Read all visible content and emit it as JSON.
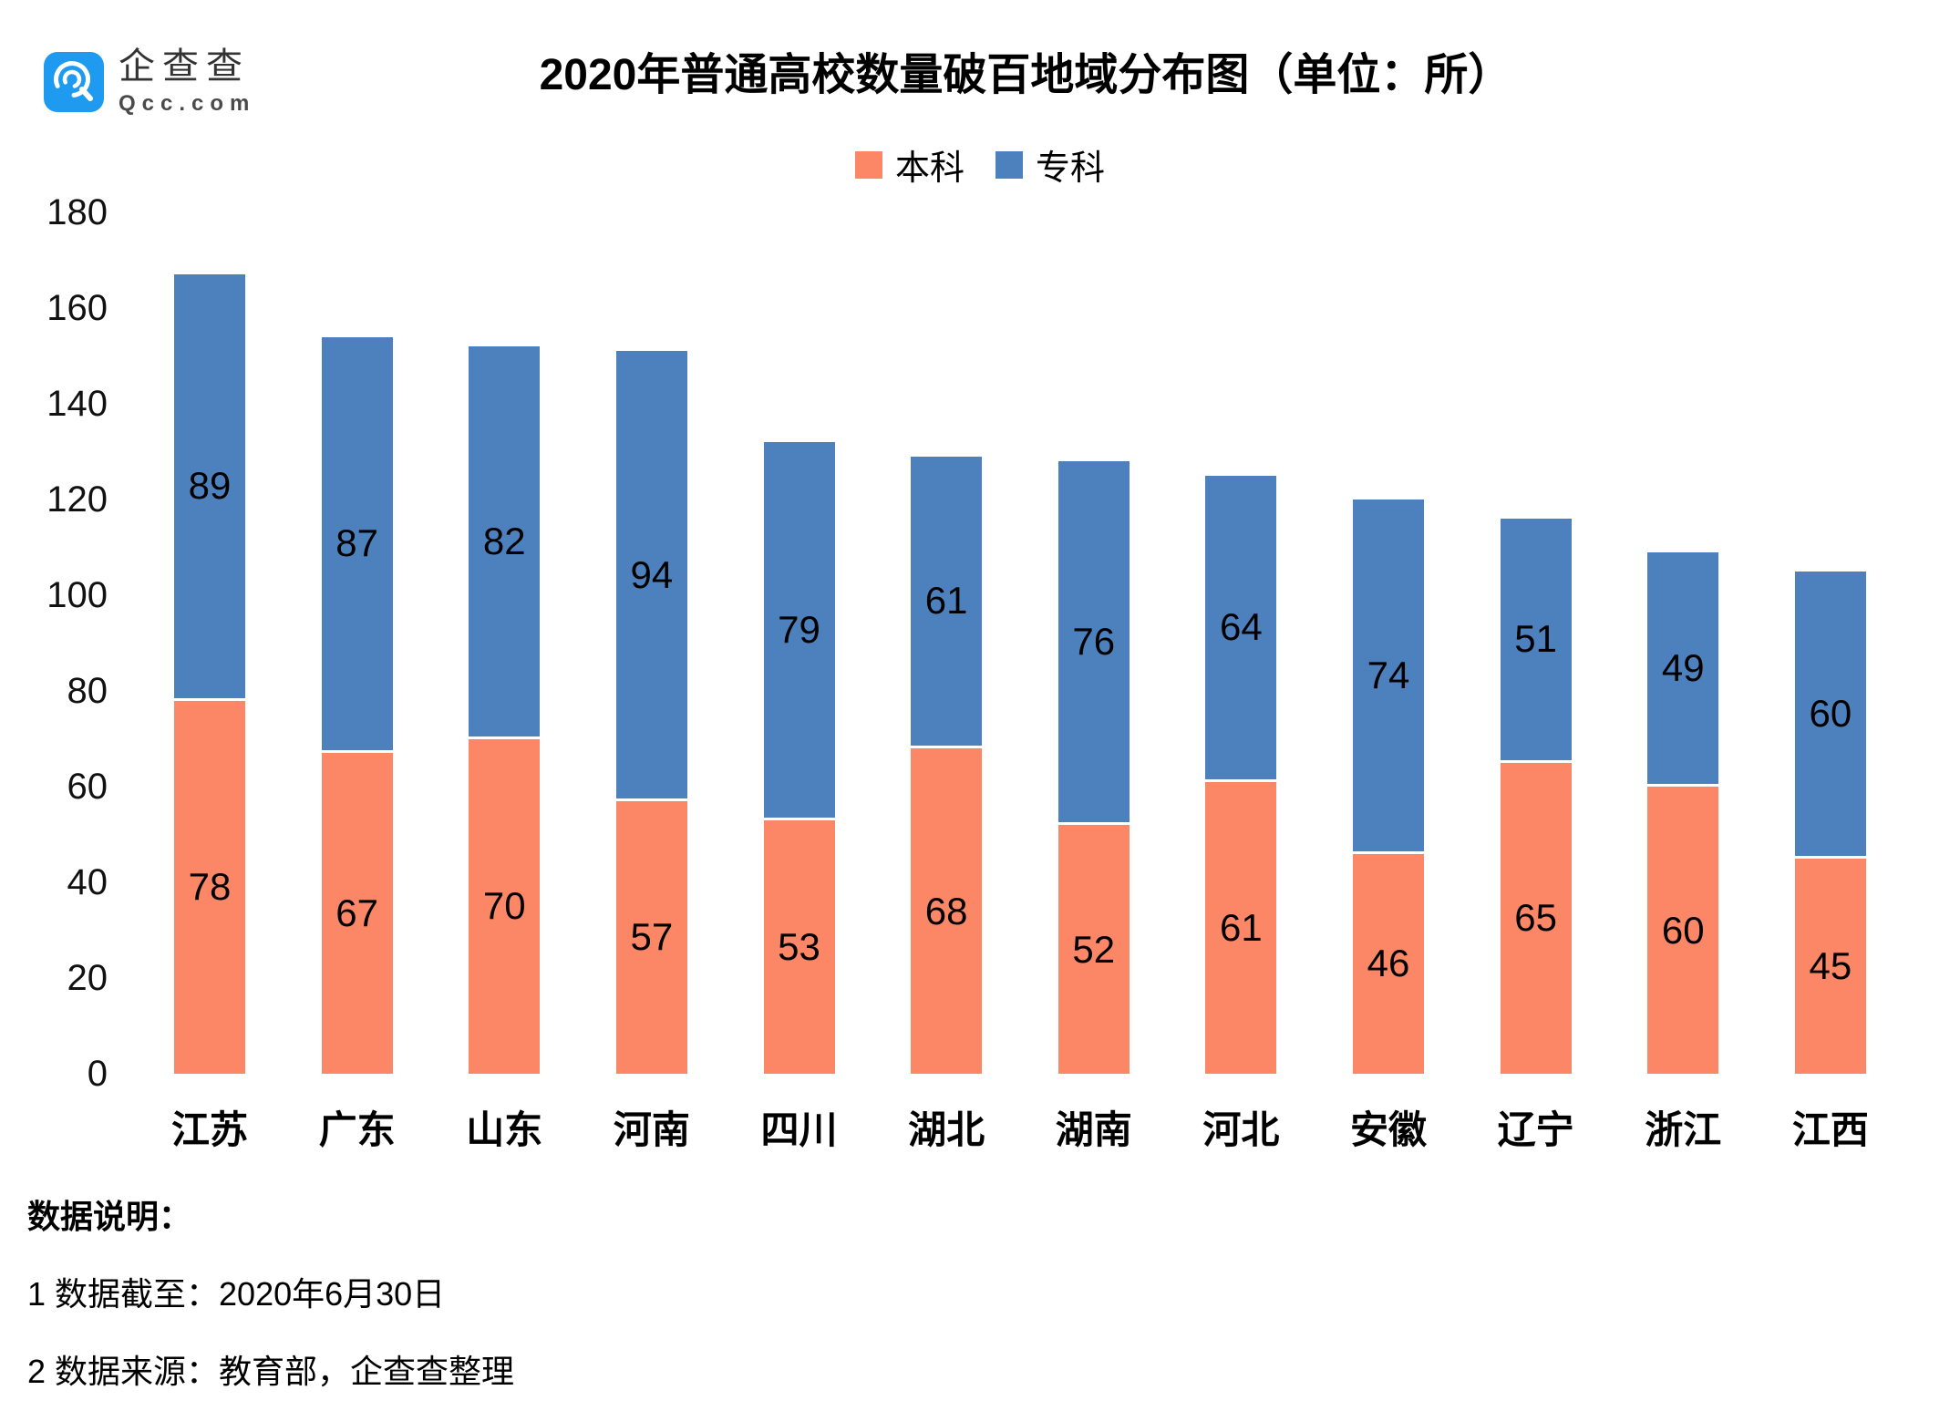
{
  "brand": {
    "name": "企查查",
    "domain": "Qcc.com",
    "icon_color": "#1e9bf0"
  },
  "title": "2020年普通高校数量破百地域分布图（单位：所）",
  "colors": {
    "benke_orange": "#FC8767",
    "zhuanke_blue": "#4D81BE",
    "text_black": "#000000"
  },
  "chart_data": {
    "type": "bar",
    "stacked": true,
    "title": "2020年普通高校数量破百地域分布图（单位：所）",
    "categories": [
      "江苏",
      "广东",
      "山东",
      "河南",
      "四川",
      "湖北",
      "湖南",
      "河北",
      "安徽",
      "辽宁",
      "浙江",
      "江西"
    ],
    "series": [
      {
        "name": "本科",
        "color": "#FC8767",
        "values": [
          78,
          67,
          70,
          57,
          53,
          68,
          52,
          61,
          46,
          65,
          60,
          45
        ]
      },
      {
        "name": "专科",
        "color": "#4D81BE",
        "values": [
          89,
          87,
          82,
          94,
          79,
          61,
          76,
          64,
          74,
          51,
          49,
          60
        ]
      }
    ],
    "totals": [
      167,
      154,
      152,
      151,
      132,
      129,
      128,
      125,
      120,
      116,
      109,
      105
    ],
    "ylim": [
      0,
      180
    ],
    "ytick_step": 20,
    "ytick_labels": [
      "0",
      "20",
      "40",
      "60",
      "80",
      "100",
      "120",
      "140",
      "160",
      "180"
    ],
    "grid": false,
    "legend_position": "top-center",
    "data_labels": true
  },
  "footnotes": {
    "heading": "数据说明：",
    "lines": [
      "1 数据截至：2020年6月30日",
      "2 数据来源：教育部，企查查整理"
    ]
  }
}
